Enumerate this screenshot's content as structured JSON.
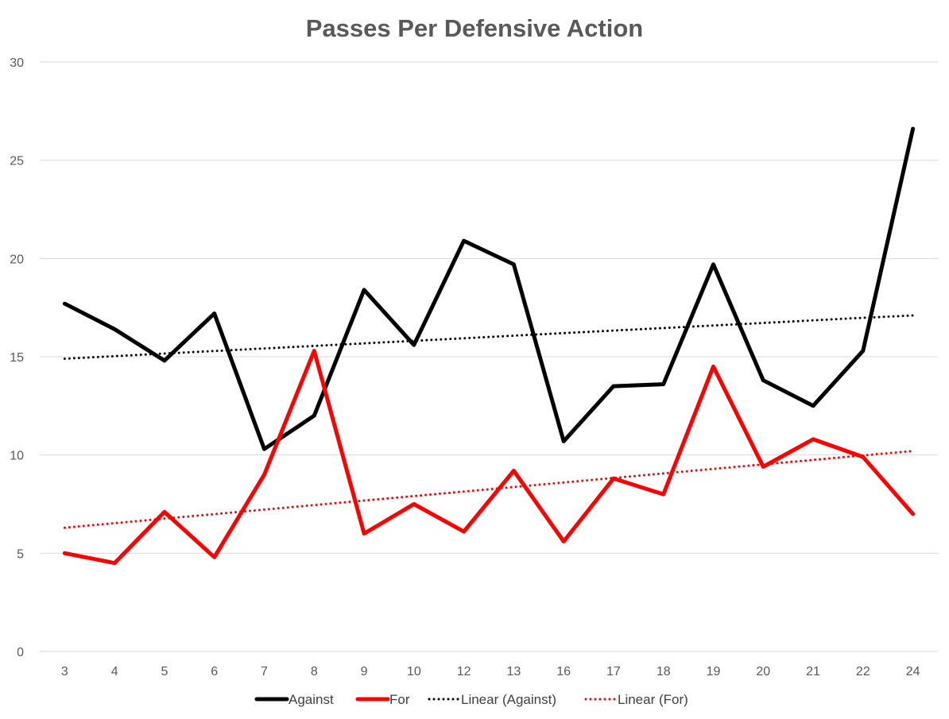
{
  "chart_data": {
    "type": "line",
    "title": "Passes Per Defensive Action",
    "xlabel": "",
    "ylabel": "",
    "categories": [
      "3",
      "4",
      "5",
      "6",
      "7",
      "8",
      "9",
      "10",
      "12",
      "13",
      "16",
      "17",
      "18",
      "19",
      "20",
      "21",
      "22",
      "24"
    ],
    "ylim": [
      0,
      30
    ],
    "yticks": [
      0,
      5,
      10,
      15,
      20,
      25,
      30
    ],
    "grid": true,
    "legend_position": "bottom",
    "series": [
      {
        "name": "Against",
        "color": "#000000",
        "style": "solid",
        "values": [
          17.7,
          16.4,
          14.8,
          17.2,
          10.3,
          12.0,
          18.4,
          15.6,
          20.9,
          19.7,
          10.7,
          13.5,
          13.6,
          19.7,
          13.8,
          12.5,
          15.3,
          26.6
        ]
      },
      {
        "name": "For",
        "color": "#ff0000",
        "style": "solid",
        "values": [
          5.0,
          4.5,
          7.1,
          4.8,
          9.0,
          15.3,
          6.0,
          7.5,
          6.1,
          9.2,
          5.6,
          8.8,
          8.0,
          14.5,
          9.4,
          10.8,
          9.9,
          7.0
        ]
      },
      {
        "name": "Linear (Against)",
        "color": "#000000",
        "style": "dotted",
        "values": [
          14.9,
          15.03,
          15.16,
          15.29,
          15.42,
          15.55,
          15.68,
          15.81,
          15.94,
          16.07,
          16.2,
          16.33,
          16.46,
          16.59,
          16.72,
          16.85,
          16.98,
          17.1
        ]
      },
      {
        "name": "Linear (For)",
        "color": "#ff0000",
        "style": "dotted",
        "values": [
          6.3,
          6.53,
          6.76,
          6.99,
          7.22,
          7.45,
          7.68,
          7.91,
          8.14,
          8.37,
          8.6,
          8.83,
          9.06,
          9.29,
          9.52,
          9.75,
          9.98,
          10.2
        ]
      }
    ]
  }
}
